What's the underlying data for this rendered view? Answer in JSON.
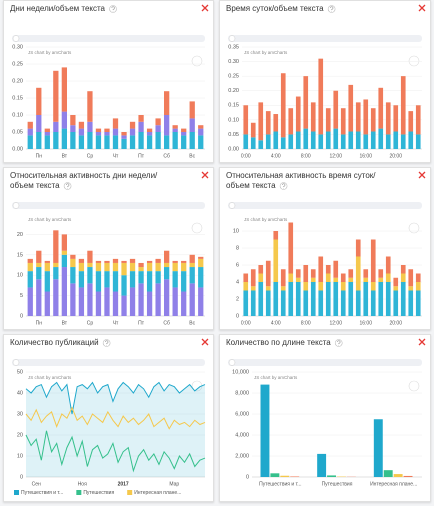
{
  "chart_data": [
    {
      "type": "bar",
      "stacked": true,
      "title": "Дни недели/объем текста",
      "credit": "JS chart by amCharts",
      "categories": [
        null,
        "Пн",
        null,
        null,
        "Вт",
        null,
        null,
        "Ср",
        null,
        null,
        "Чт",
        null,
        null,
        "Пт",
        null,
        null,
        "Сб",
        null,
        null,
        "Вс",
        null
      ],
      "series": [
        {
          "color": "#2fb5d6",
          "values": [
            0.04,
            0.05,
            0.04,
            0.05,
            0.06,
            0.05,
            0.04,
            0.05,
            0.04,
            0.04,
            0.04,
            0.03,
            0.04,
            0.05,
            0.04,
            0.05,
            0.04,
            0.05,
            0.04,
            0.05,
            0.04
          ]
        },
        {
          "color": "#8f80e8",
          "values": [
            0.02,
            0.05,
            0.01,
            0.03,
            0.05,
            0.02,
            0.02,
            0.03,
            0.01,
            0.01,
            0.02,
            0.01,
            0.02,
            0.03,
            0.01,
            0.02,
            0.06,
            0.01,
            0.01,
            0.04,
            0.02
          ]
        },
        {
          "color": "#f07b5a",
          "values": [
            0.02,
            0.08,
            0.01,
            0.15,
            0.13,
            0.03,
            0.02,
            0.09,
            0.01,
            0.01,
            0.03,
            0.01,
            0.02,
            0.02,
            0.01,
            0.02,
            0.07,
            0.01,
            0.01,
            0.05,
            0.01
          ]
        }
      ],
      "ylim": [
        0,
        0.3
      ],
      "yticks": [
        {
          "value": 0,
          "label": "0.00"
        },
        0.05,
        {
          "value": 0.1,
          "label": "0.10"
        },
        0.15,
        {
          "value": 0.2,
          "label": "0.20"
        },
        0.25,
        {
          "value": 0.3,
          "label": "0.30"
        }
      ],
      "grid": true
    },
    {
      "type": "bar",
      "stacked": true,
      "title": "Время суток/объем текста",
      "credit": "JS chart by amCharts",
      "categories": [
        "0:00",
        null,
        null,
        null,
        "4:00",
        null,
        null,
        null,
        "8:00",
        null,
        null,
        null,
        "12:00",
        null,
        null,
        null,
        "16:00",
        null,
        null,
        null,
        "20:00",
        null,
        null,
        null
      ],
      "series": [
        {
          "color": "#2fb5d6",
          "values": [
            0.05,
            0.04,
            0.03,
            0.05,
            0.06,
            0.04,
            0.05,
            0.06,
            0.07,
            0.06,
            0.05,
            0.06,
            0.07,
            0.05,
            0.06,
            0.06,
            0.05,
            0.06,
            0.07,
            0.05,
            0.06,
            0.05,
            0.06,
            0.05
          ]
        },
        {
          "color": "#f07b5a",
          "values": [
            0.1,
            0.05,
            0.13,
            0.08,
            0.06,
            0.22,
            0.09,
            0.12,
            0.18,
            0.1,
            0.26,
            0.08,
            0.13,
            0.09,
            0.16,
            0.1,
            0.12,
            0.08,
            0.14,
            0.11,
            0.09,
            0.2,
            0.07,
            0.1
          ]
        }
      ],
      "ylim": [
        0,
        0.35
      ],
      "yticks": [
        {
          "value": 0,
          "label": "0.00"
        },
        0.05,
        {
          "value": 0.1,
          "label": "0.10"
        },
        0.15,
        {
          "value": 0.2,
          "label": "0.20"
        },
        0.25,
        {
          "value": 0.3,
          "label": "0.30"
        },
        0.35
      ],
      "grid": true
    },
    {
      "type": "bar",
      "stacked": true,
      "title": "Относительная активность дни недели/объем текста",
      "credit": "JS chart by amCharts",
      "categories": [
        null,
        "Пн",
        null,
        null,
        "Вт",
        null,
        null,
        "Ср",
        null,
        null,
        "Чт",
        null,
        null,
        "Пт",
        null,
        null,
        "Сб",
        null,
        null,
        "Вс",
        null
      ],
      "series": [
        {
          "color": "#8f80e8",
          "values": [
            7,
            9,
            6,
            9,
            12,
            8,
            7,
            8,
            6,
            7,
            6,
            5,
            7,
            8,
            6,
            8,
            9,
            7,
            6,
            8,
            7
          ]
        },
        {
          "color": "#2fb5d6",
          "values": [
            4,
            3,
            5,
            3,
            3,
            4,
            4,
            4,
            5,
            4,
            5,
            5,
            4,
            3,
            5,
            3,
            3,
            4,
            5,
            4,
            5
          ]
        },
        {
          "color": "#f5c84c",
          "values": [
            2,
            1,
            2,
            1,
            1,
            2,
            2,
            1,
            2,
            2,
            2,
            3,
            2,
            1,
            2,
            2,
            1,
            2,
            2,
            1,
            2
          ]
        },
        {
          "color": "#f07b5a",
          "values": [
            1,
            3,
            0.5,
            8,
            4,
            1,
            1,
            3,
            0.5,
            0.5,
            1,
            0.5,
            1,
            1,
            0.5,
            1,
            3,
            0.5,
            0.5,
            2,
            0.5
          ]
        }
      ],
      "ylim": [
        0,
        25
      ],
      "yticks": [
        0,
        5,
        10,
        15,
        20
      ],
      "grid": true
    },
    {
      "type": "bar",
      "stacked": true,
      "title": "Относительная активность время суток/объем текста",
      "credit": "JS chart by amCharts",
      "categories": [
        "0:00",
        null,
        null,
        null,
        "4:00",
        null,
        null,
        null,
        "8:00",
        null,
        null,
        null,
        "12:00",
        null,
        null,
        null,
        "16:00",
        null,
        null,
        null,
        "20:00",
        null,
        null,
        null
      ],
      "series": [
        {
          "color": "#2fb5d6",
          "values": [
            3,
            3,
            4,
            3,
            4,
            3,
            4,
            4,
            3,
            4,
            3,
            4,
            4,
            3,
            4,
            3,
            4,
            3,
            4,
            4,
            3,
            4,
            3,
            3
          ]
        },
        {
          "color": "#f5c84c",
          "values": [
            1,
            0.5,
            1,
            0.5,
            5,
            0.5,
            1,
            0.5,
            1,
            0.5,
            1,
            1,
            0.5,
            1,
            0.5,
            4,
            0.5,
            1,
            0.5,
            1,
            0.5,
            1,
            0.5,
            1
          ]
        },
        {
          "color": "#f07b5a",
          "values": [
            1,
            2,
            1,
            3,
            1,
            2,
            6,
            1,
            2,
            1,
            3,
            1,
            2,
            1,
            1,
            2,
            1,
            5,
            1,
            2,
            1,
            1,
            2,
            1
          ]
        }
      ],
      "ylim": [
        0,
        12
      ],
      "yticks": [
        0,
        2,
        4,
        6,
        8,
        10
      ],
      "grid": true
    },
    {
      "type": "line",
      "title": "Количество публикаций",
      "credit": "JS chart by amCharts",
      "categories": [
        null,
        null,
        "Сен",
        null,
        null,
        null,
        null,
        null,
        null,
        null,
        null,
        "Ноя",
        null,
        null,
        null,
        null,
        null,
        null,
        null,
        "2017",
        null,
        null,
        null,
        null,
        null,
        null,
        null,
        null,
        null,
        "Мар",
        null,
        null,
        null,
        null,
        null,
        null
      ],
      "series": [
        {
          "name": "Путешествия и т...",
          "color": "#1fa8cc",
          "area": true,
          "values": [
            42,
            40,
            43,
            44,
            38,
            43,
            45,
            41,
            44,
            30,
            43,
            44,
            42,
            45,
            40,
            43,
            44,
            36,
            42,
            45,
            43,
            40,
            44,
            42,
            38,
            43,
            45,
            41,
            44,
            43,
            40,
            42,
            44,
            41,
            43,
            44
          ]
        },
        {
          "name": "Путешествия",
          "color": "#35c08c",
          "values": [
            20,
            15,
            18,
            8,
            22,
            12,
            16,
            6,
            14,
            19,
            10,
            17,
            5,
            13,
            15,
            9,
            11,
            16,
            7,
            12,
            14,
            3,
            10,
            13,
            8,
            11,
            6,
            12,
            9,
            4,
            10,
            7,
            11,
            5,
            8,
            9
          ]
        },
        {
          "name": "Интересная плане...",
          "color": "#f5c84c",
          "values": [
            30,
            27,
            32,
            26,
            29,
            31,
            24,
            30,
            28,
            33,
            27,
            29,
            25,
            30,
            28,
            26,
            31,
            27,
            24,
            29,
            26,
            28,
            25,
            27,
            30,
            24,
            26,
            28,
            23,
            27,
            25,
            26,
            24,
            27,
            25,
            26
          ]
        }
      ],
      "ylim": [
        0,
        50
      ],
      "yticks": [
        0,
        10,
        20,
        30,
        40,
        50
      ],
      "grid": true,
      "legend": "bottom"
    },
    {
      "type": "bar",
      "stacked": false,
      "title": "Количество по длине текста",
      "credit": "JS chart by amCharts",
      "categories": [
        "Путешествия и т...",
        "Путешествия",
        "Интересная плане..."
      ],
      "series": [
        {
          "color": "#1fa8cc",
          "values": [
            8800,
            2200,
            5500
          ]
        },
        {
          "color": "#35c08c",
          "values": [
            350,
            150,
            650
          ]
        },
        {
          "color": "#f5c84c",
          "values": [
            120,
            40,
            280
          ]
        },
        {
          "color": "#f07b5a",
          "values": [
            50,
            20,
            100
          ]
        }
      ],
      "ylim": [
        0,
        10000
      ],
      "yticks": [
        0,
        {
          "value": 2000,
          "label": "2,000"
        },
        {
          "value": 4000,
          "label": "4,000"
        },
        {
          "value": 6000,
          "label": "6,000"
        },
        {
          "value": 8000,
          "label": "8,000"
        },
        {
          "value": 10000,
          "label": "10,000"
        }
      ],
      "grid": true
    }
  ]
}
